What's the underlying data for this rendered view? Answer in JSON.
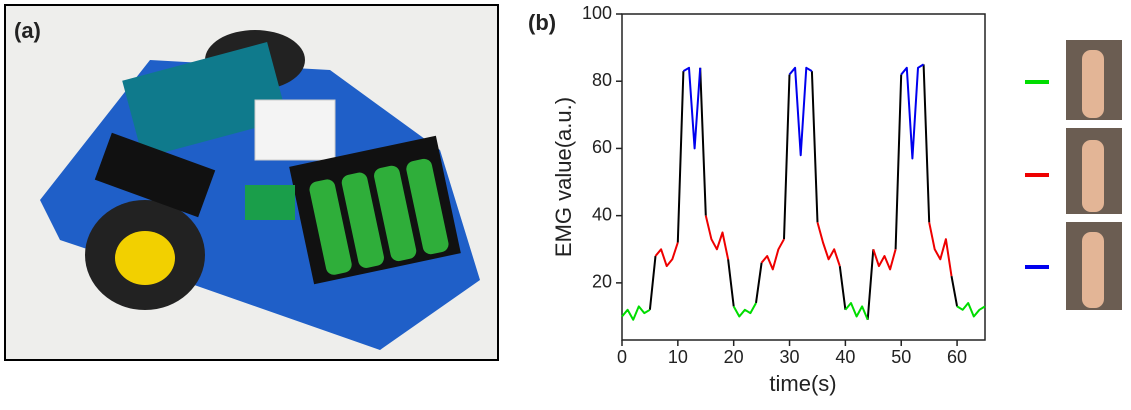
{
  "panel_a_label": "(a)",
  "chart_data": {
    "type": "line",
    "panel_label": "(b)",
    "x_label": "time(s)",
    "y_label": "EMG value(a.u.)",
    "x": [
      0,
      1,
      2,
      3,
      4,
      5,
      6,
      7,
      8,
      9,
      10,
      11,
      12,
      13,
      14,
      15,
      16,
      17,
      18,
      19,
      20,
      21,
      22,
      23,
      24,
      25,
      26,
      27,
      28,
      29,
      30,
      31,
      32,
      33,
      34,
      35,
      36,
      37,
      38,
      39,
      40,
      41,
      42,
      43,
      44,
      45,
      46,
      47,
      48,
      49,
      50,
      51,
      52,
      53,
      54,
      55,
      56,
      57,
      58,
      59,
      60,
      61,
      62,
      63,
      64,
      65
    ],
    "series": [
      {
        "color": "#000000",
        "values": [
          null,
          null,
          null,
          null,
          null,
          12,
          28,
          null,
          null,
          null,
          32,
          83,
          null,
          null,
          84,
          40,
          null,
          null,
          null,
          27,
          13,
          null,
          null,
          null,
          14,
          26,
          null,
          null,
          null,
          33,
          82,
          null,
          null,
          null,
          83,
          38,
          null,
          null,
          null,
          25,
          12,
          null,
          null,
          null,
          9,
          30,
          null,
          null,
          null,
          30,
          82,
          null,
          null,
          null,
          85,
          38,
          null,
          null,
          null,
          22,
          13,
          null,
          null,
          null,
          null,
          null
        ]
      },
      {
        "color": "#00dd00",
        "values": [
          10,
          12,
          9,
          13,
          11,
          12,
          null,
          null,
          null,
          null,
          null,
          null,
          null,
          null,
          null,
          null,
          null,
          null,
          null,
          null,
          13,
          10,
          12,
          11,
          14,
          null,
          null,
          null,
          null,
          null,
          null,
          null,
          null,
          null,
          null,
          null,
          null,
          null,
          null,
          null,
          12,
          14,
          10,
          13,
          9,
          null,
          null,
          null,
          null,
          null,
          null,
          null,
          null,
          null,
          null,
          null,
          null,
          null,
          null,
          null,
          13,
          12,
          14,
          10,
          12,
          13
        ]
      },
      {
        "color": "#ee0000",
        "values": [
          null,
          null,
          null,
          null,
          null,
          null,
          28,
          30,
          25,
          27,
          32,
          null,
          null,
          null,
          null,
          40,
          33,
          30,
          35,
          27,
          null,
          null,
          null,
          null,
          null,
          26,
          28,
          24,
          30,
          33,
          null,
          null,
          null,
          null,
          null,
          38,
          32,
          27,
          30,
          25,
          null,
          null,
          null,
          null,
          null,
          30,
          25,
          28,
          24,
          30,
          null,
          null,
          null,
          null,
          null,
          38,
          30,
          27,
          33,
          22,
          null,
          null,
          null,
          null,
          null,
          null
        ]
      },
      {
        "color": "#0000ee",
        "values": [
          null,
          null,
          null,
          null,
          null,
          null,
          null,
          null,
          null,
          null,
          null,
          83,
          84,
          60,
          84,
          null,
          null,
          null,
          null,
          null,
          null,
          null,
          null,
          null,
          null,
          null,
          null,
          null,
          null,
          null,
          82,
          84,
          58,
          84,
          83,
          null,
          null,
          null,
          null,
          null,
          null,
          null,
          null,
          null,
          null,
          null,
          null,
          null,
          null,
          null,
          82,
          84,
          57,
          84,
          85,
          null,
          null,
          null,
          null,
          null,
          null,
          null,
          null,
          null,
          null,
          null
        ]
      }
    ],
    "legend_order": [
      1,
      2,
      3
    ],
    "xlim": [
      0,
      65
    ],
    "ylim": [
      3,
      100
    ],
    "xticks": [
      0,
      10,
      20,
      30,
      40,
      50,
      60
    ],
    "yticks": [
      20,
      40,
      60,
      80,
      100
    ]
  }
}
